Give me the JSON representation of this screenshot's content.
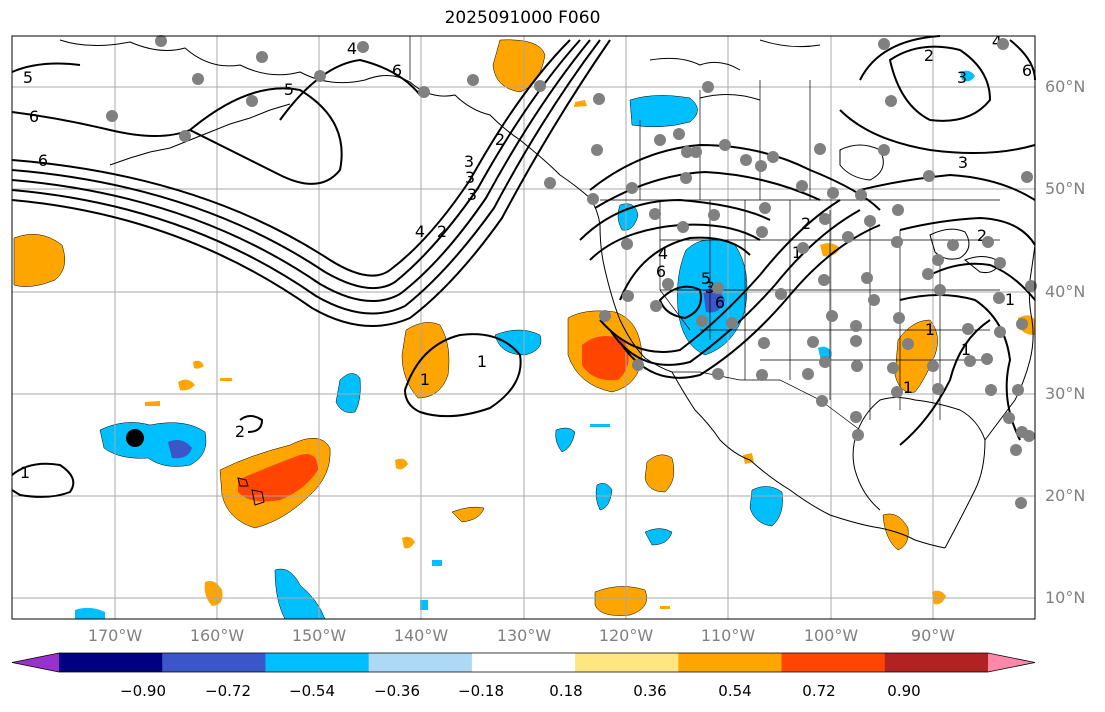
{
  "title": "2025091000 F060",
  "lat_labels": [
    {
      "text": "60°N"
    },
    {
      "text": "50°N"
    },
    {
      "text": "40°N"
    },
    {
      "text": "30°N"
    },
    {
      "text": "20°N"
    },
    {
      "text": "10°N"
    }
  ],
  "lon_labels": [
    {
      "text": "170°W"
    },
    {
      "text": "160°W"
    },
    {
      "text": "150°W"
    },
    {
      "text": "140°W"
    },
    {
      "text": "130°W"
    },
    {
      "text": "120°W"
    },
    {
      "text": "110°W"
    },
    {
      "text": "100°W"
    },
    {
      "text": "90°W"
    }
  ],
  "colorbar": {
    "colors": [
      "#9932cc",
      "#000080",
      "#3a56c8",
      "#00bfff",
      "#add8f6",
      "#ffffff",
      "#ffe680",
      "#ffa500",
      "#ff4500",
      "#b22222",
      "#ff88aa"
    ],
    "tick_labels": [
      "−0.90",
      "−0.72",
      "−0.54",
      "−0.36",
      "−0.18",
      "0.18",
      "0.36",
      "0.54",
      "0.72",
      "0.90"
    ]
  },
  "contour_labels": [
    "5",
    "4",
    "6",
    "6",
    "6",
    "5",
    "6",
    "1",
    "3",
    "1",
    "2",
    "1",
    "4",
    "2",
    "3",
    "3",
    "3",
    "2",
    "4",
    "6",
    "5",
    "6",
    "3",
    "2",
    "1",
    "1",
    "2",
    "3",
    "4",
    "2",
    "1",
    "1",
    "1"
  ],
  "marker_colors": {
    "stations": "#808080",
    "highlight": "#000000"
  }
}
